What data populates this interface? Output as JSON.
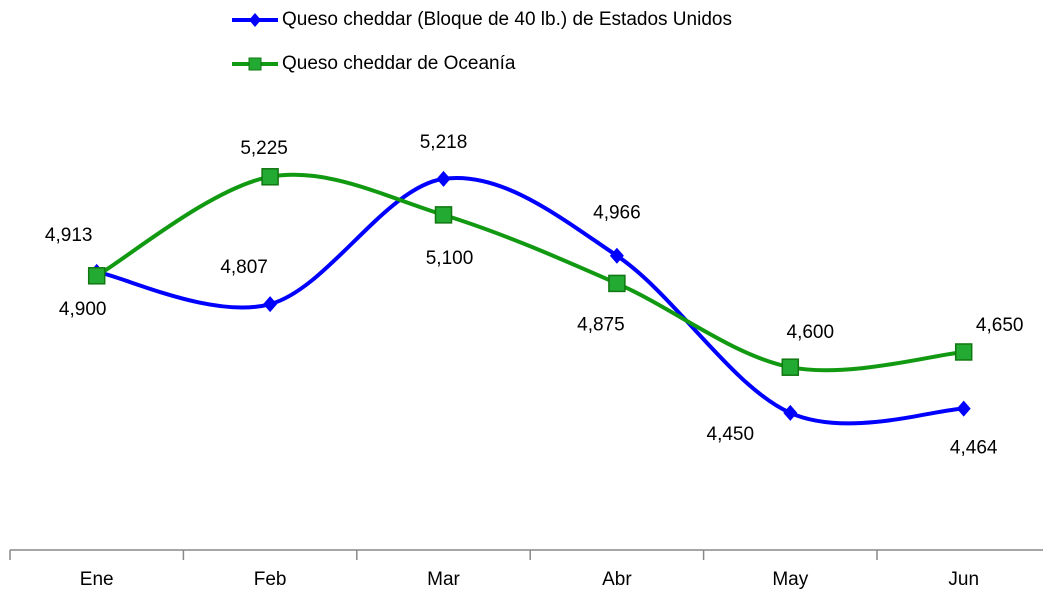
{
  "chart_data": {
    "type": "line",
    "categories": [
      "Ene",
      "Feb",
      "Mar",
      "Abr",
      "May",
      "Jun"
    ],
    "series": [
      {
        "name": "Queso cheddar (Bloque de 40 lb.) de Estados Unidos",
        "color": "#0000ff",
        "marker": "diamond",
        "values": [
          4913,
          4807,
          5218,
          4966,
          4450,
          4464
        ],
        "value_labels": [
          "4,913",
          "4,807",
          "5,218",
          "4,966",
          "4,450",
          "4,464"
        ]
      },
      {
        "name": "Queso cheddar de Oceanía",
        "color": "#119911",
        "marker": "square",
        "values": [
          4900,
          5225,
          5100,
          4875,
          4600,
          4650
        ],
        "value_labels": [
          "4,900",
          "5,225",
          "5,100",
          "4,875",
          "4,600",
          "4,650"
        ]
      }
    ],
    "ylim": [
      4000,
      5500
    ],
    "smooth": true
  }
}
